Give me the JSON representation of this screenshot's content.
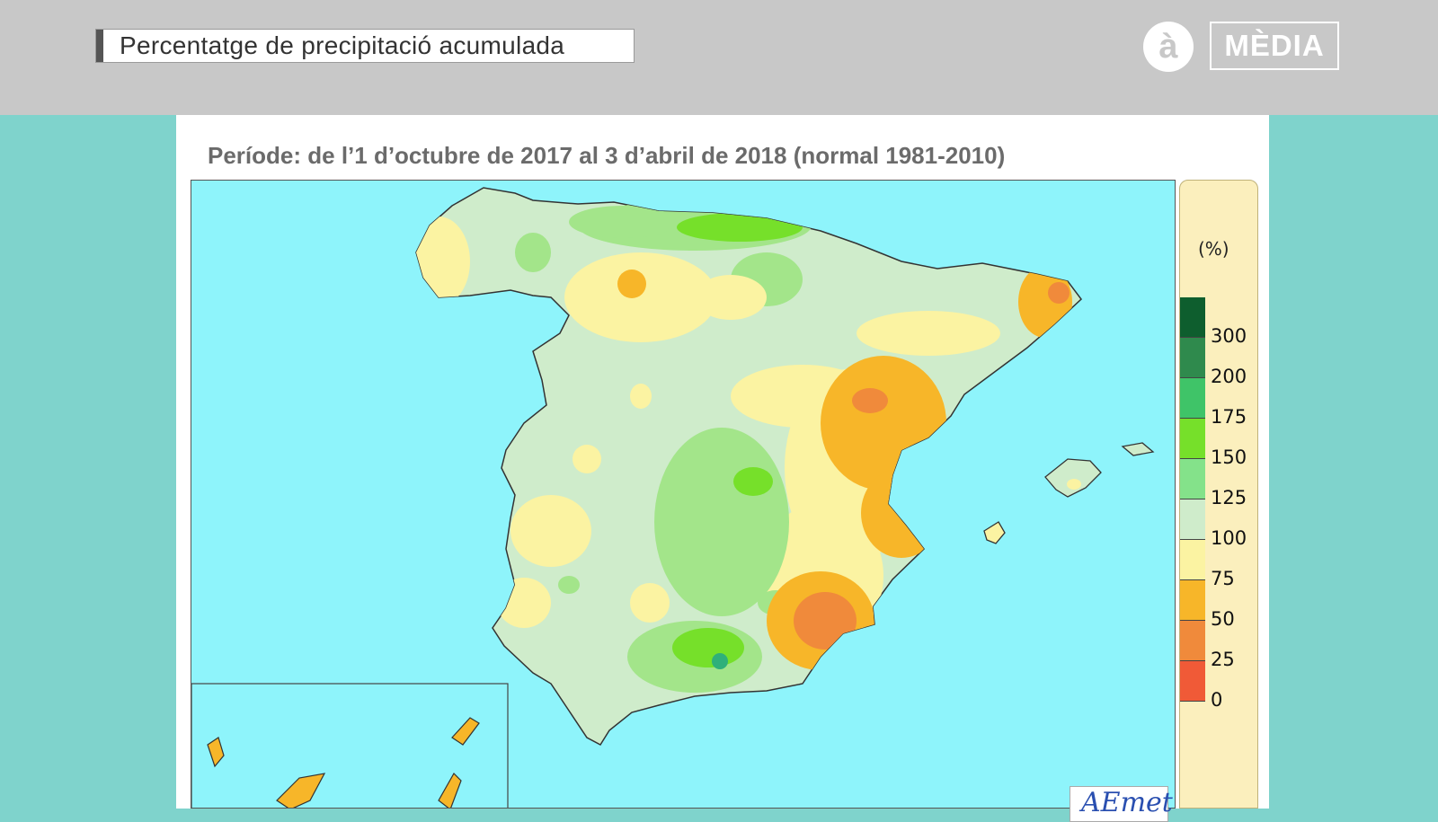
{
  "header": {
    "title": "Percentatge de precipitació acumulada",
    "logo_symbol": "à",
    "logo_text": "MÈDIA"
  },
  "map": {
    "period": "Període: de l’1 d’octubre de 2017 al 3 d’abril de 2018 (normal 1981-2010)",
    "watermark": "AEmet",
    "sea_color": "#8ef4fb"
  },
  "legend": {
    "unit": "(%)",
    "ticks": [
      "300",
      "200",
      "175",
      "150",
      "125",
      "100",
      "75",
      "50",
      "25",
      "0"
    ],
    "colors": [
      "#0e5e2e",
      "#2f8a4d",
      "#3fc468",
      "#76e02a",
      "#84e28a",
      "#cfeccb",
      "#fbf3a2",
      "#f7b629",
      "#f08a3b",
      "#f05a37"
    ]
  }
}
